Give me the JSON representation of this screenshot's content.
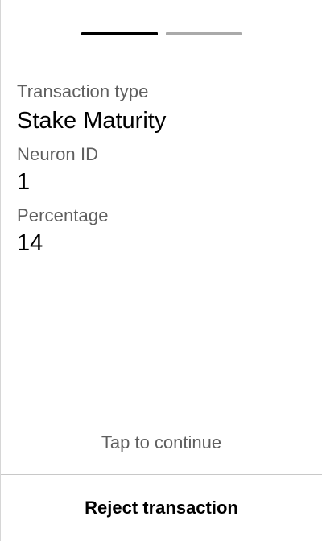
{
  "progress": {
    "steps_total": 2,
    "current_step": 1,
    "active_color": "#000000",
    "inactive_color": "#aaaaaa"
  },
  "fields": [
    {
      "label": "Transaction type",
      "value": "Stake Maturity"
    },
    {
      "label": "Neuron ID",
      "value": "1"
    },
    {
      "label": "Percentage",
      "value": "14"
    }
  ],
  "tap_hint": "Tap to continue",
  "reject_label": "Reject transaction",
  "colors": {
    "label_text": "#5f5f5f",
    "value_text": "#000000",
    "divider": "#c8c8c8"
  }
}
